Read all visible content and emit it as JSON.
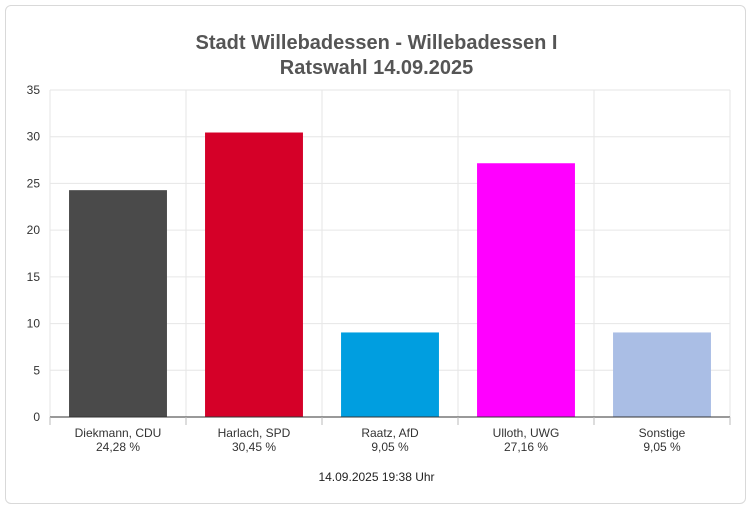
{
  "chart_data": {
    "type": "bar",
    "title": "Stadt Willebadessen - Willebadessen I",
    "subtitle": "Ratswahl 14.09.2025",
    "categories": [
      "Diekmann, CDU",
      "Harlach, SPD",
      "Raatz, AfD",
      "Ulloth, UWG",
      "Sonstige"
    ],
    "value_labels": [
      "24,28 %",
      "30,45 %",
      "9,05 %",
      "27,16 %",
      "9,05 %"
    ],
    "values": [
      24.28,
      30.45,
      9.05,
      27.16,
      9.05
    ],
    "colors": [
      "#4a4a4a",
      "#d50028",
      "#009ee0",
      "#ff00ff",
      "#aabee5"
    ],
    "ylim": [
      0,
      35
    ],
    "yticks": [
      0,
      5,
      10,
      15,
      20,
      25,
      30,
      35
    ],
    "grid": true,
    "xlabel": "",
    "ylabel": ""
  },
  "footer": "14.09.2025 19:38 Uhr"
}
